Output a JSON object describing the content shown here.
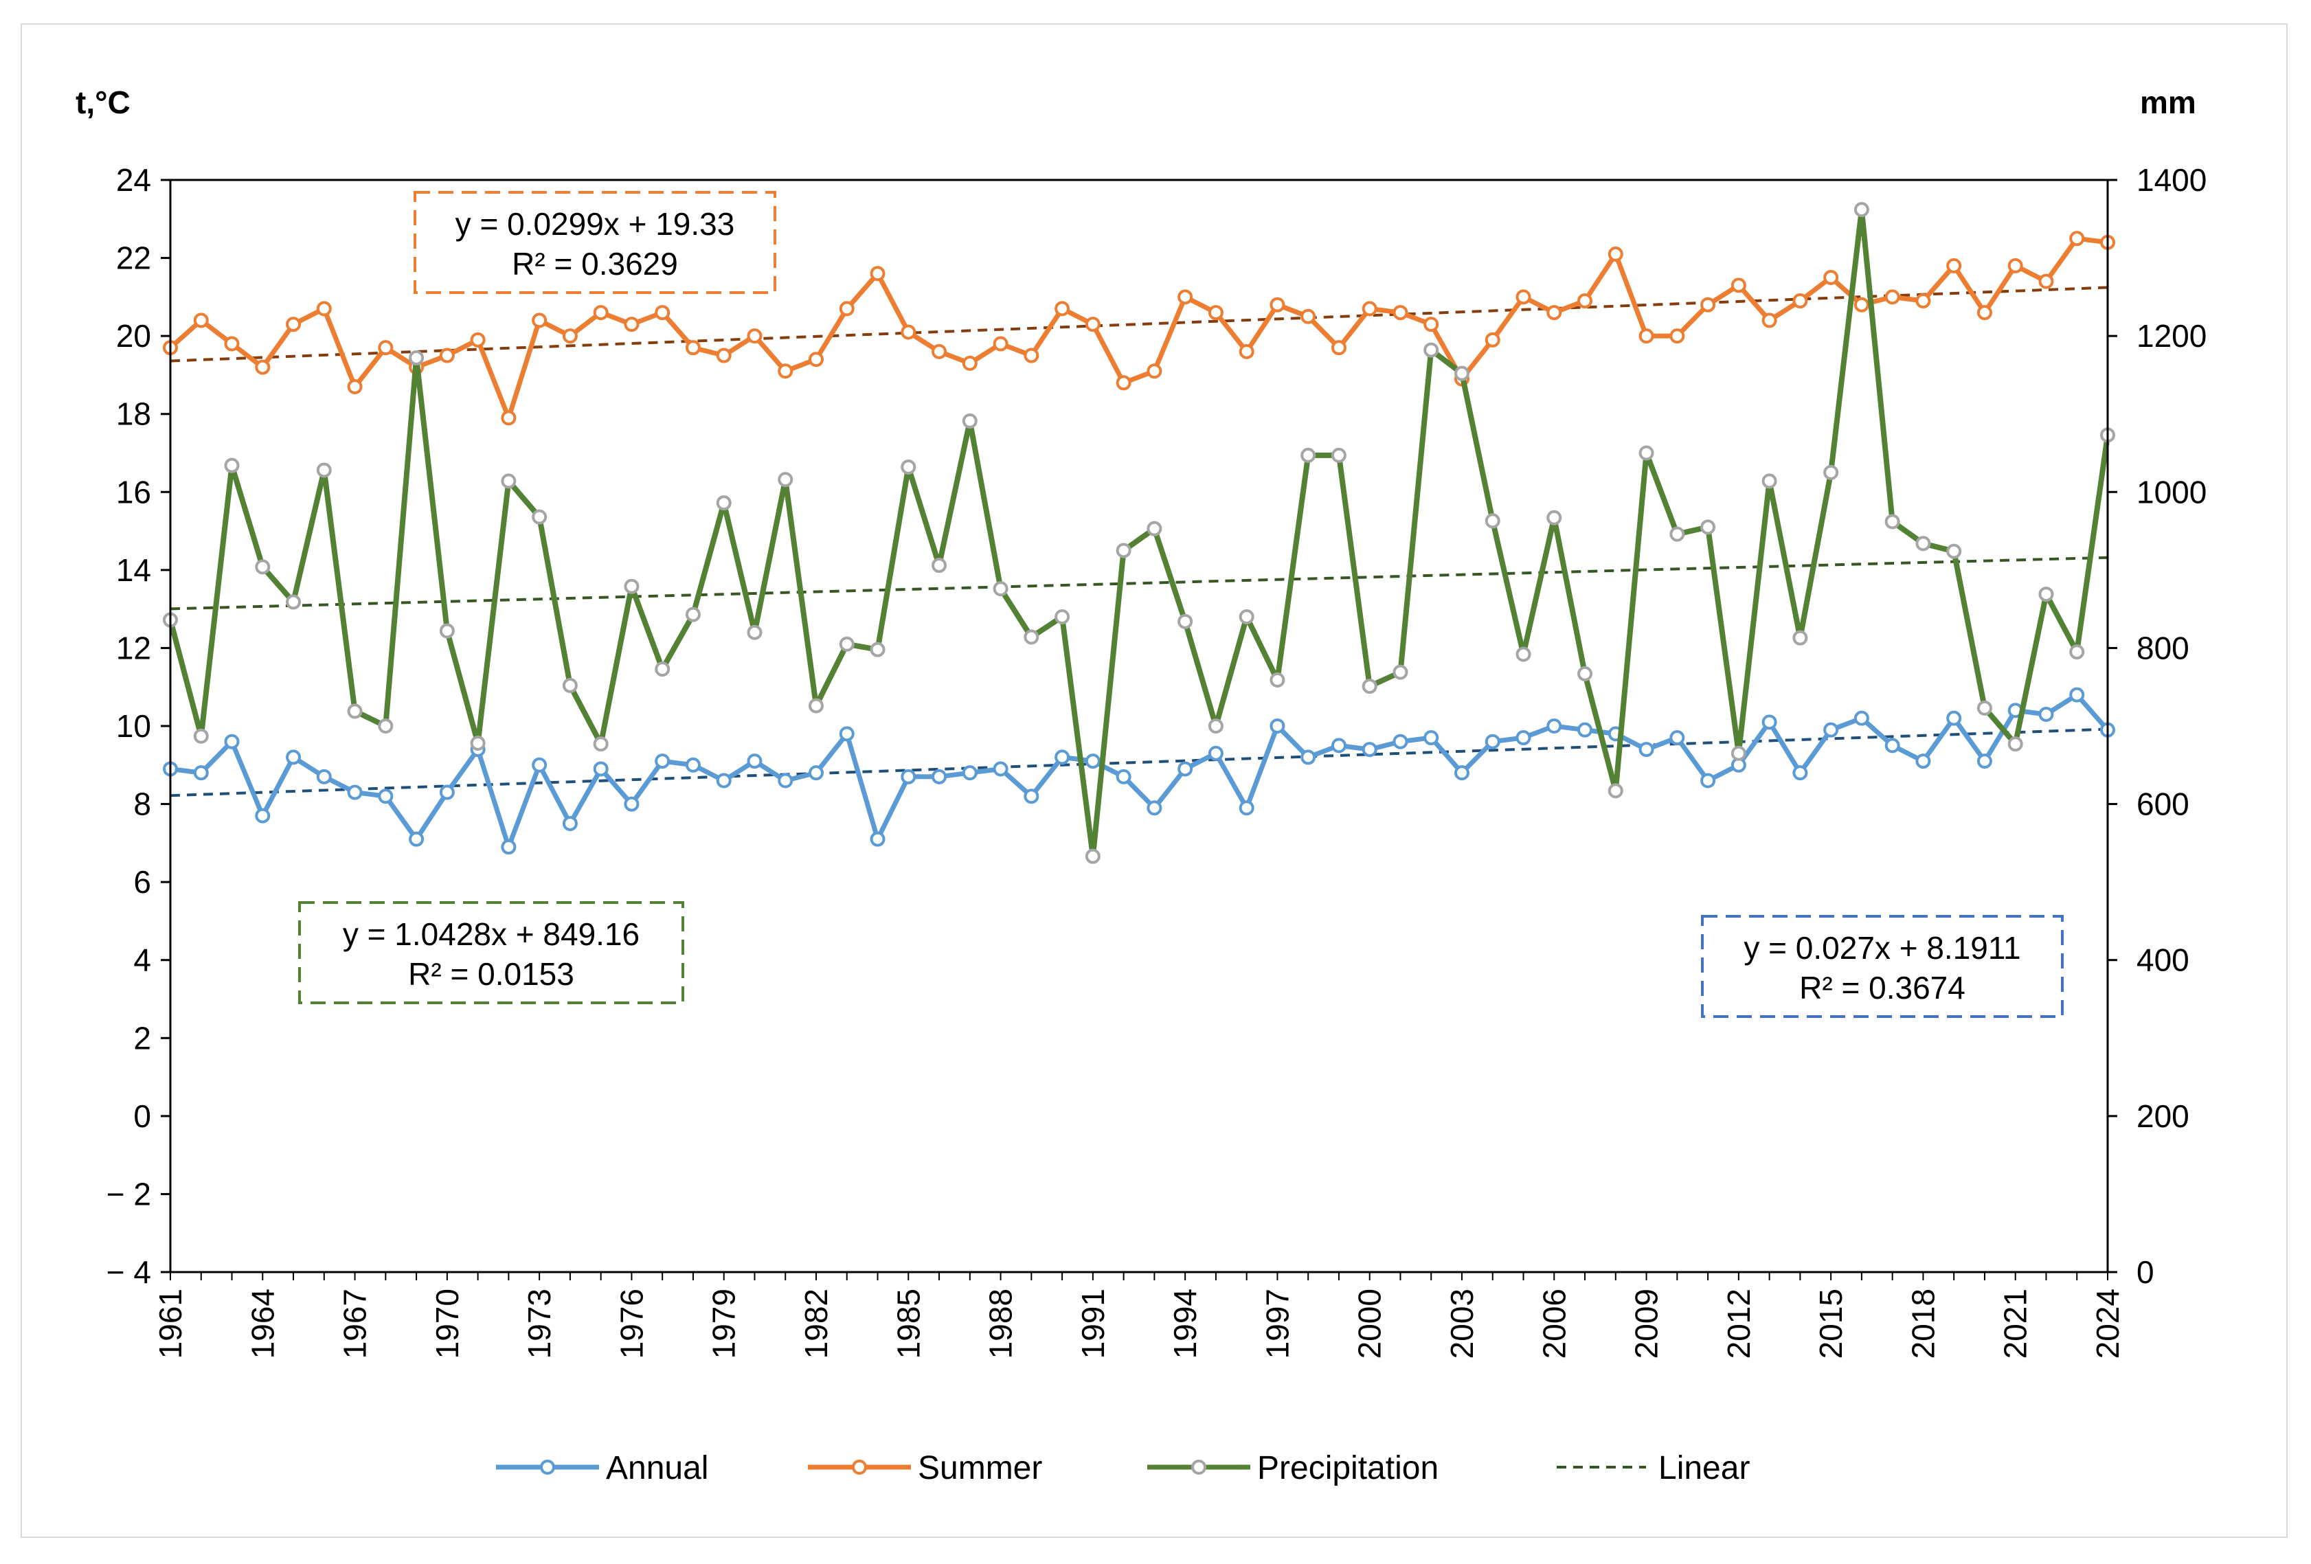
{
  "chart_data": {
    "type": "line",
    "left_axis_label": "t,°C",
    "right_axis_label": "mm",
    "y_left_lim": [
      -4,
      24
    ],
    "y_left_ticks": [
      -4,
      -2,
      0,
      2,
      4,
      6,
      8,
      10,
      12,
      14,
      16,
      18,
      20,
      22,
      24
    ],
    "y_left_tick_labels": [
      "− 4",
      "− 2",
      "0",
      "2",
      "4",
      "6",
      "8",
      "10",
      "12",
      "14",
      "16",
      "18",
      "20",
      "22",
      "24"
    ],
    "y_right_lim": [
      0,
      1400
    ],
    "y_right_ticks": [
      0,
      200,
      400,
      600,
      800,
      1000,
      1200,
      1400
    ],
    "y_right_tick_labels": [
      "0",
      "200",
      "400",
      "600",
      "800",
      "1000",
      "1200",
      "1400"
    ],
    "x_start": 1961,
    "x_end": 2024,
    "x_tick_labels": [
      "1961",
      "1964",
      "1967",
      "1970",
      "1973",
      "1976",
      "1979",
      "1982",
      "1985",
      "1988",
      "1991",
      "1994",
      "1997",
      "2000",
      "2003",
      "2006",
      "2009",
      "2012",
      "2015",
      "2018",
      "2021",
      "2024"
    ],
    "series": [
      {
        "name": "Annual",
        "axis": "left",
        "color": "#5b9bd5",
        "values": [
          8.9,
          8.8,
          9.6,
          7.7,
          9.2,
          8.7,
          8.3,
          8.2,
          7.1,
          8.3,
          9.4,
          6.9,
          9.0,
          7.5,
          8.9,
          8.0,
          9.1,
          9.0,
          8.6,
          9.1,
          8.6,
          8.8,
          9.8,
          7.1,
          8.7,
          8.7,
          8.8,
          8.9,
          8.2,
          9.2,
          9.1,
          8.7,
          7.9,
          8.9,
          9.3,
          7.9,
          10.0,
          9.2,
          9.5,
          9.4,
          9.6,
          9.7,
          8.8,
          9.6,
          9.7,
          10.0,
          9.9,
          9.8,
          9.4,
          9.7,
          8.6,
          9.0,
          10.1,
          8.8,
          9.9,
          10.2,
          9.5,
          9.1,
          10.2,
          9.1,
          10.4,
          10.3,
          10.8,
          9.9
        ]
      },
      {
        "name": "Summer",
        "axis": "left",
        "color": "#ed7d31",
        "values": [
          19.7,
          20.4,
          19.8,
          19.2,
          20.3,
          20.7,
          18.7,
          19.7,
          19.2,
          19.5,
          19.9,
          17.9,
          20.4,
          20.0,
          20.6,
          20.3,
          20.6,
          19.7,
          19.5,
          20.0,
          19.1,
          19.4,
          20.7,
          21.6,
          20.1,
          19.6,
          19.3,
          19.8,
          19.5,
          20.7,
          20.3,
          18.8,
          19.1,
          21.0,
          20.6,
          19.6,
          20.8,
          20.5,
          19.7,
          20.7,
          20.6,
          20.3,
          18.9,
          19.9,
          21.0,
          20.6,
          20.9,
          22.1,
          20.0,
          20.0,
          20.8,
          21.3,
          20.4,
          20.9,
          21.5,
          20.8,
          21.0,
          20.9,
          21.8,
          20.6,
          21.8,
          21.4,
          22.5,
          22.4
        ]
      },
      {
        "name": "Precipitation",
        "axis": "right",
        "color": "#548235",
        "marker_color": "#a5a5a5",
        "values": [
          836,
          687,
          1034,
          904,
          859,
          1028,
          719,
          700,
          1172,
          822,
          678,
          1014,
          968,
          752,
          677,
          879,
          773,
          843,
          986,
          820,
          1016,
          726,
          805,
          798,
          1032,
          906,
          1091,
          876,
          814,
          840,
          533,
          925,
          953,
          834,
          700,
          840,
          759,
          1047,
          1047,
          751,
          769,
          1182,
          1152,
          963,
          792,
          967,
          767,
          617,
          1050,
          946,
          955,
          665,
          1014,
          813,
          1025,
          1362,
          962,
          934,
          924,
          723,
          677,
          869,
          795,
          1073
        ]
      }
    ],
    "trendlines": [
      {
        "series": "Annual",
        "equation": "y = 0.027x + 8.1911",
        "r2": "R² = 0.3674",
        "slope": 0.027,
        "intercept": 8.1911,
        "line_color": "#1f4e79",
        "box_color": "#4472c4"
      },
      {
        "series": "Summer",
        "equation": "y = 0.0299x + 19.33",
        "r2": "R² = 0.3629",
        "slope": 0.0299,
        "intercept": 19.33,
        "line_color": "#843c0c",
        "box_color": "#ed7d31"
      },
      {
        "series": "Precipitation",
        "equation": "y = 1.0428x + 849.16",
        "r2": "R² = 0.0153",
        "slope": 1.0428,
        "intercept": 849.16,
        "line_color": "#375623",
        "box_color": "#548235"
      }
    ],
    "legend": {
      "position": "bottom",
      "items": [
        {
          "label": "Annual",
          "color": "#5b9bd5",
          "style": "line-marker"
        },
        {
          "label": "Summer",
          "color": "#ed7d31",
          "style": "line-marker"
        },
        {
          "label": "Precipitation",
          "color": "#548235",
          "style": "line-marker"
        },
        {
          "label": "Linear",
          "color": "#375623",
          "style": "dashed"
        }
      ]
    }
  }
}
